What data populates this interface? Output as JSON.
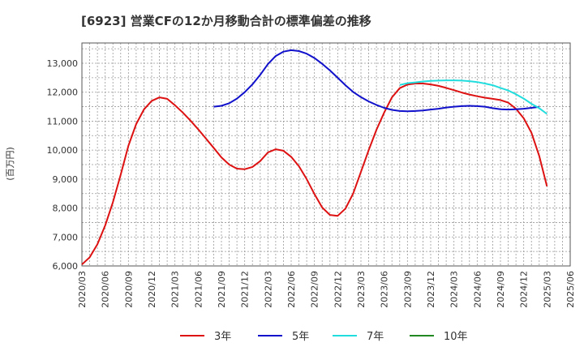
{
  "chart_data": {
    "type": "line",
    "title": "[6923]  営業CFの12か月移動合計の標準偏差の推移",
    "ylabel": "(百万円)",
    "xlabel": "",
    "ylim": [
      6000,
      13700
    ],
    "yticks": [
      6000,
      7000,
      8000,
      9000,
      10000,
      11000,
      12000,
      13000
    ],
    "ytick_labels": [
      "6,000",
      "7,000",
      "8,000",
      "9,000",
      "10,000",
      "11,000",
      "12,000",
      "13,000"
    ],
    "xlim": [
      "2020-03",
      "2025-06"
    ],
    "xticks": [
      "2020/03",
      "2020/06",
      "2020/09",
      "2020/12",
      "2021/03",
      "2021/06",
      "2021/09",
      "2021/12",
      "2022/03",
      "2022/06",
      "2022/09",
      "2022/12",
      "2023/03",
      "2023/06",
      "2023/09",
      "2023/12",
      "2024/03",
      "2024/06",
      "2024/09",
      "2024/12",
      "2025/03",
      "2025/06"
    ],
    "grid": true,
    "legend_position": "bottom",
    "series": [
      {
        "name": "3年",
        "color": "#dd1111",
        "start": "2020-03",
        "values": [
          6050,
          6300,
          6750,
          7400,
          8200,
          9150,
          10150,
          10900,
          11400,
          11700,
          11820,
          11770,
          11550,
          11300,
          11020,
          10720,
          10400,
          10080,
          9750,
          9500,
          9360,
          9340,
          9420,
          9620,
          9920,
          10030,
          9980,
          9770,
          9440,
          9000,
          8480,
          8020,
          7760,
          7730,
          7980,
          8500,
          9250,
          10000,
          10700,
          11300,
          11820,
          12140,
          12260,
          12300,
          12300,
          12270,
          12220,
          12150,
          12070,
          11990,
          11920,
          11860,
          11810,
          11770,
          11730,
          11640,
          11430,
          11100,
          10600,
          9800,
          8750
        ]
      },
      {
        "name": "5年",
        "color": "#1111cc",
        "start": "2021-08",
        "values": [
          11500,
          11530,
          11620,
          11780,
          12000,
          12270,
          12600,
          12970,
          13250,
          13400,
          13450,
          13420,
          13330,
          13180,
          12980,
          12750,
          12500,
          12240,
          12010,
          11830,
          11680,
          11560,
          11460,
          11390,
          11350,
          11340,
          11350,
          11370,
          11400,
          11430,
          11470,
          11500,
          11520,
          11530,
          11520,
          11500,
          11450,
          11410,
          11400,
          11410,
          11430,
          11460,
          11490
        ]
      },
      {
        "name": "7年",
        "color": "#22dddd",
        "start": "2023-08",
        "values": [
          12250,
          12310,
          12340,
          12370,
          12390,
          12400,
          12410,
          12410,
          12400,
          12380,
          12350,
          12300,
          12240,
          12150,
          12060,
          11930,
          11780,
          11600,
          11450,
          11250
        ]
      },
      {
        "name": "10年",
        "color": "#228822",
        "start": "",
        "values": []
      }
    ]
  }
}
